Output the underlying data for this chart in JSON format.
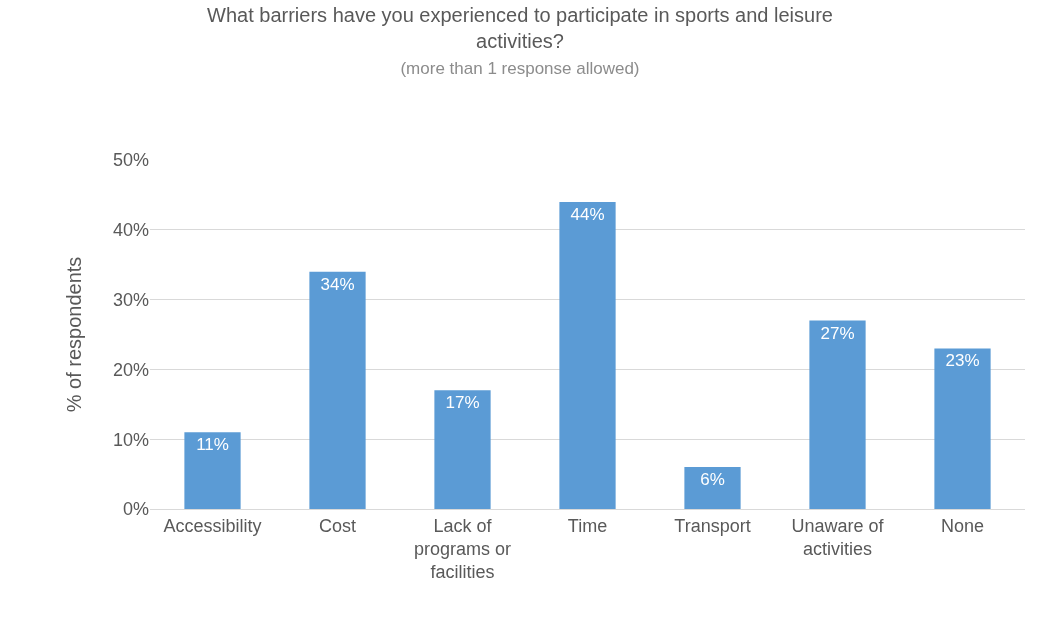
{
  "chart_data": {
    "type": "bar",
    "title": "What barriers have you experienced to participate in sports and leisure activities?",
    "subtitle": "(more than 1 response allowed)",
    "ylabel": "% of respondents",
    "categories": [
      "Accessibility",
      "Cost",
      "Lack of programs or facilities",
      "Time",
      "Transport",
      "Unaware of activities",
      "None"
    ],
    "values": [
      11,
      34,
      17,
      44,
      6,
      27,
      23
    ],
    "value_labels": [
      "11%",
      "34%",
      "17%",
      "44%",
      "6%",
      "27%",
      "23%"
    ],
    "color": "#5b9bd5",
    "ylim": [
      0,
      50
    ],
    "yticks": [
      {
        "value": 0,
        "label": "0%"
      },
      {
        "value": 10,
        "label": "10%"
      },
      {
        "value": 20,
        "label": "20%"
      },
      {
        "value": 30,
        "label": "30%"
      },
      {
        "value": 40,
        "label": "40%"
      },
      {
        "value": 50,
        "label": "50%"
      }
    ],
    "grid": "y",
    "legend": false
  }
}
